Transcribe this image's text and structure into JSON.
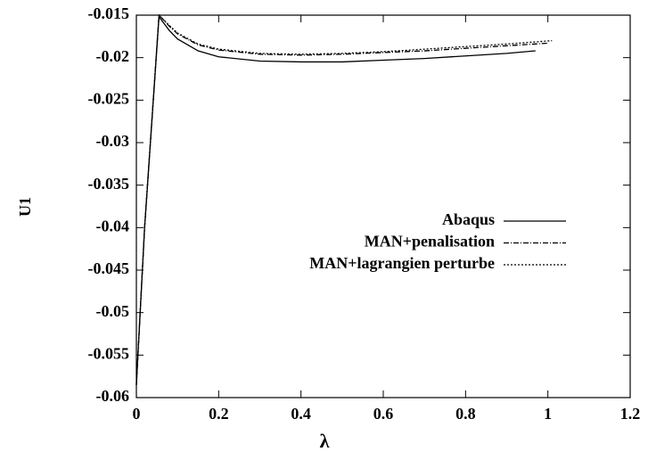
{
  "chart_data": {
    "type": "line",
    "xlabel": "λ",
    "ylabel": "U1",
    "xlim": [
      0,
      1.2
    ],
    "xticks": [
      0,
      0.2,
      0.4,
      0.6,
      0.8,
      1,
      1.2
    ],
    "ylim": [
      -0.06,
      -0.015
    ],
    "yticks": [
      -0.06,
      -0.055,
      -0.05,
      -0.045,
      -0.04,
      -0.035,
      -0.03,
      -0.025,
      -0.02,
      -0.015
    ],
    "legend": "right",
    "series": [
      {
        "name": "Abaqus",
        "color": "#000000",
        "style": "solid",
        "x": [
          0,
          0.02,
          0.055,
          0.08,
          0.1,
          0.15,
          0.2,
          0.3,
          0.4,
          0.5,
          0.6,
          0.7,
          0.8,
          0.9,
          0.97
        ],
        "values": [
          -0.0585,
          -0.04,
          -0.0152,
          -0.0168,
          -0.0178,
          -0.0192,
          -0.0199,
          -0.0204,
          -0.0205,
          -0.0205,
          -0.0203,
          -0.0201,
          -0.0198,
          -0.0195,
          -0.0192
        ]
      },
      {
        "name": "MAN+penalisation",
        "color": "#000000",
        "style": "dashdot",
        "x": [
          0,
          0.02,
          0.055,
          0.08,
          0.1,
          0.15,
          0.2,
          0.3,
          0.4,
          0.5,
          0.6,
          0.7,
          0.8,
          0.9,
          1.0
        ],
        "values": [
          -0.0585,
          -0.04,
          -0.015,
          -0.0163,
          -0.0172,
          -0.0185,
          -0.0191,
          -0.0196,
          -0.0197,
          -0.0196,
          -0.0194,
          -0.0192,
          -0.0189,
          -0.0186,
          -0.0183
        ]
      },
      {
        "name": "MAN+lagrangien perturbe",
        "color": "#000000",
        "style": "dotted",
        "x": [
          0,
          0.02,
          0.055,
          0.08,
          0.1,
          0.15,
          0.2,
          0.3,
          0.4,
          0.5,
          0.6,
          0.7,
          0.8,
          0.9,
          1.01
        ],
        "values": [
          -0.0585,
          -0.04,
          -0.015,
          -0.0162,
          -0.0171,
          -0.0184,
          -0.019,
          -0.0195,
          -0.0196,
          -0.0195,
          -0.0193,
          -0.019,
          -0.0187,
          -0.0184,
          -0.018
        ]
      }
    ]
  }
}
